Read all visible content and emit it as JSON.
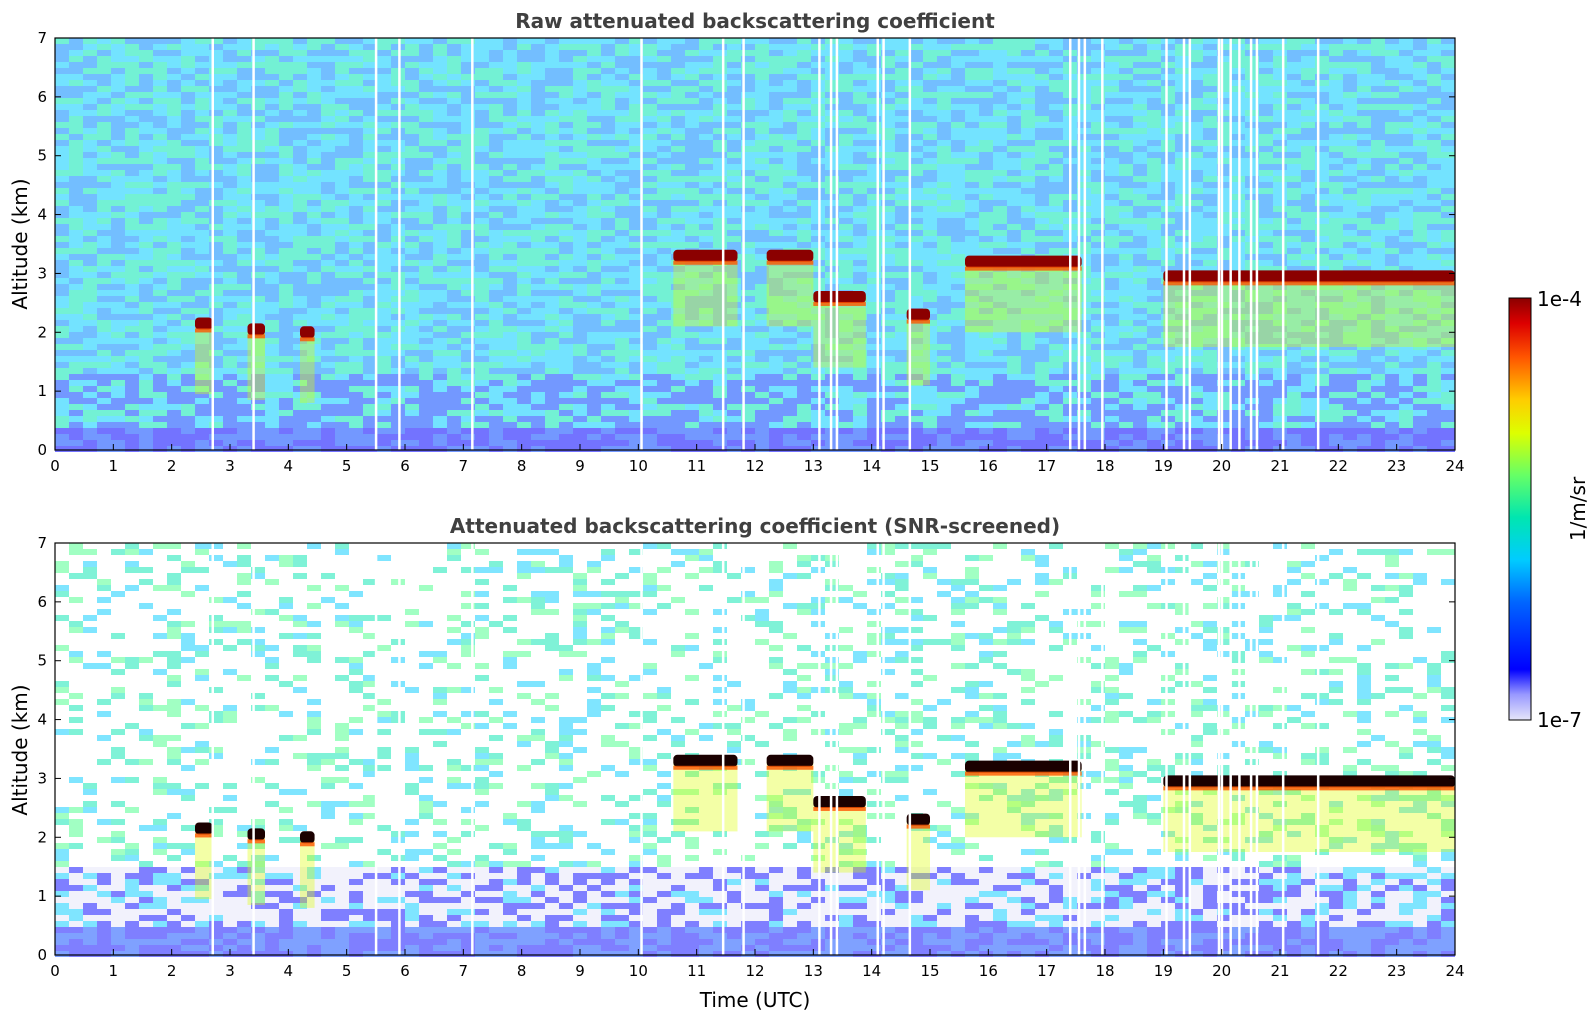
{
  "chart_data": [
    {
      "type": "heatmap",
      "title": "Raw attenuated backscattering coefficient",
      "ylabel": "Altitude (km)",
      "xlabel": "",
      "xlim": [
        0,
        24
      ],
      "ylim": [
        0,
        7
      ],
      "xticks": [
        "0",
        "1",
        "2",
        "3",
        "4",
        "5",
        "6",
        "7",
        "8",
        "9",
        "10",
        "11",
        "12",
        "13",
        "14",
        "15",
        "16",
        "17",
        "18",
        "19",
        "20",
        "21",
        "22",
        "23",
        "24"
      ],
      "yticks": [
        "0",
        "1",
        "2",
        "3",
        "4",
        "5",
        "6",
        "7"
      ],
      "color_scale": {
        "min": "1e-7",
        "max": "1e-4",
        "unit": "1/m/sr",
        "colormap": "jet"
      },
      "features": [
        {
          "kind": "cloud_layer",
          "time": [
            2.4,
            2.7
          ],
          "altitude_km": 2.15,
          "level": "1e-4"
        },
        {
          "kind": "cloud_layer",
          "time": [
            3.3,
            3.6
          ],
          "altitude_km": 2.05,
          "level": "1e-4"
        },
        {
          "kind": "cloud_layer",
          "time": [
            4.2,
            4.45
          ],
          "altitude_km": 2.0,
          "level": "1e-4"
        },
        {
          "kind": "cloud_layer",
          "time": [
            10.6,
            11.7
          ],
          "altitude_km": 3.3,
          "level": "1e-4"
        },
        {
          "kind": "cloud_layer",
          "time": [
            12.2,
            13.0
          ],
          "altitude_km": 3.3,
          "level": "1e-4"
        },
        {
          "kind": "cloud_layer",
          "time": [
            13.0,
            13.9
          ],
          "altitude_km": 2.6,
          "level": "1e-4"
        },
        {
          "kind": "cloud_layer",
          "time": [
            14.6,
            15.0
          ],
          "altitude_km": 2.3,
          "level": "1e-4"
        },
        {
          "kind": "cloud_layer",
          "time": [
            15.6,
            17.6
          ],
          "altitude_km": 3.2,
          "level": "1e-4"
        },
        {
          "kind": "cloud_layer",
          "time": [
            19.0,
            24.0
          ],
          "altitude_km": 2.95,
          "level": "1e-4"
        }
      ],
      "gaps_time": [
        2.7,
        3.4,
        5.5,
        5.9,
        7.15,
        10.05,
        11.45,
        11.8,
        13.1,
        13.3,
        13.4,
        14.1,
        14.2,
        14.65,
        17.4,
        17.55,
        17.65,
        17.95,
        19.05,
        19.35,
        19.45,
        19.95,
        20.0,
        20.15,
        20.3,
        20.5,
        20.6,
        21.05,
        21.65
      ]
    },
    {
      "type": "heatmap",
      "title": "Attenuated backscattering coefficient (SNR-screened)",
      "ylabel": "Altitude (km)",
      "xlabel": "Time (UTC)",
      "xlim": [
        0,
        24
      ],
      "ylim": [
        0,
        7
      ],
      "xticks": [
        "0",
        "1",
        "2",
        "3",
        "4",
        "5",
        "6",
        "7",
        "8",
        "9",
        "10",
        "11",
        "12",
        "13",
        "14",
        "15",
        "16",
        "17",
        "18",
        "19",
        "20",
        "21",
        "22",
        "23",
        "24"
      ],
      "yticks": [
        "0",
        "1",
        "2",
        "3",
        "4",
        "5",
        "6",
        "7"
      ],
      "color_scale": {
        "min": "1e-7",
        "max": "1e-4",
        "unit": "1/m/sr",
        "colormap": "jet"
      },
      "features": [
        {
          "kind": "cloud_layer",
          "time": [
            2.4,
            2.7
          ],
          "altitude_km": 2.15,
          "level": "1e-4"
        },
        {
          "kind": "cloud_layer",
          "time": [
            3.3,
            3.6
          ],
          "altitude_km": 2.05,
          "level": "1e-4"
        },
        {
          "kind": "cloud_layer",
          "time": [
            4.2,
            4.45
          ],
          "altitude_km": 2.0,
          "level": "1e-4"
        },
        {
          "kind": "cloud_layer",
          "time": [
            10.6,
            11.7
          ],
          "altitude_km": 3.3,
          "level": "1e-4"
        },
        {
          "kind": "cloud_layer",
          "time": [
            12.2,
            13.0
          ],
          "altitude_km": 3.3,
          "level": "1e-4"
        },
        {
          "kind": "cloud_layer",
          "time": [
            13.0,
            13.9
          ],
          "altitude_km": 2.6,
          "level": "1e-4"
        },
        {
          "kind": "cloud_layer",
          "time": [
            14.6,
            15.0
          ],
          "altitude_km": 2.3,
          "level": "1e-4"
        },
        {
          "kind": "cloud_layer",
          "time": [
            15.6,
            17.6
          ],
          "altitude_km": 3.2,
          "level": "1e-4"
        },
        {
          "kind": "cloud_layer",
          "time": [
            19.0,
            24.0
          ],
          "altitude_km": 2.95,
          "level": "1e-4"
        }
      ],
      "gaps_time": [
        2.7,
        3.4,
        5.5,
        5.9,
        7.15,
        10.05,
        11.45,
        11.8,
        13.1,
        13.3,
        13.4,
        14.1,
        14.2,
        14.65,
        17.4,
        17.55,
        17.65,
        17.95,
        19.05,
        19.35,
        19.45,
        19.95,
        20.0,
        20.15,
        20.3,
        20.5,
        20.6,
        21.05,
        21.65
      ]
    }
  ],
  "colorbar": {
    "top_label": "1e-4",
    "bottom_label": "1e-7",
    "unit_label": "1/m/sr"
  }
}
